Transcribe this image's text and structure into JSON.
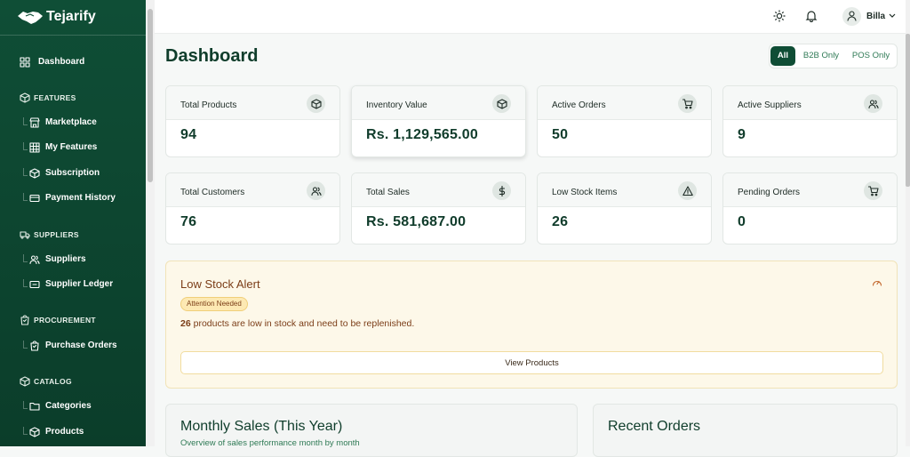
{
  "sidebar": {
    "brand": "Tejarify",
    "items": [
      "Dashboard"
    ],
    "sections": [
      {
        "title": "FEATURES",
        "items": [
          "Marketplace",
          "My Features",
          "Subscription",
          "Payment History"
        ]
      },
      {
        "title": "SUPPLIERS",
        "items": [
          "Suppliers",
          "Supplier Ledger"
        ]
      },
      {
        "title": "PROCUREMENT",
        "items": [
          "Purchase Orders"
        ]
      },
      {
        "title": "CATALOG",
        "items": [
          "Categories",
          "Products"
        ]
      }
    ]
  },
  "topbar": {
    "user": "Billa"
  },
  "header": {
    "title": "Dashboard",
    "filters": [
      "All",
      "B2B Only",
      "POS Only"
    ]
  },
  "stats": [
    {
      "label": "Total Products",
      "value": 94
    },
    {
      "label": "Inventory Value",
      "value": "Rs. 1,129,565.00"
    },
    {
      "label": "Active Orders",
      "value": 50
    },
    {
      "label": "Active Suppliers",
      "value": 9
    },
    {
      "label": "Total Customers",
      "value": 76
    },
    {
      "label": "Total Sales",
      "value": "Rs. 581,687.00"
    },
    {
      "label": "Low Stock Items",
      "value": 26
    },
    {
      "label": "Pending Orders",
      "value": 0
    }
  ],
  "alert": {
    "title": "Low Stock Alert",
    "badge": "Attention Needed",
    "count": 26,
    "message": "products are low in stock and need to be replenished.",
    "button": "View Products"
  },
  "panels": [
    {
      "title": "Monthly Sales (This Year)",
      "subtitle": "Overview of sales performance month by month"
    },
    {
      "title": "Recent Orders"
    }
  ]
}
